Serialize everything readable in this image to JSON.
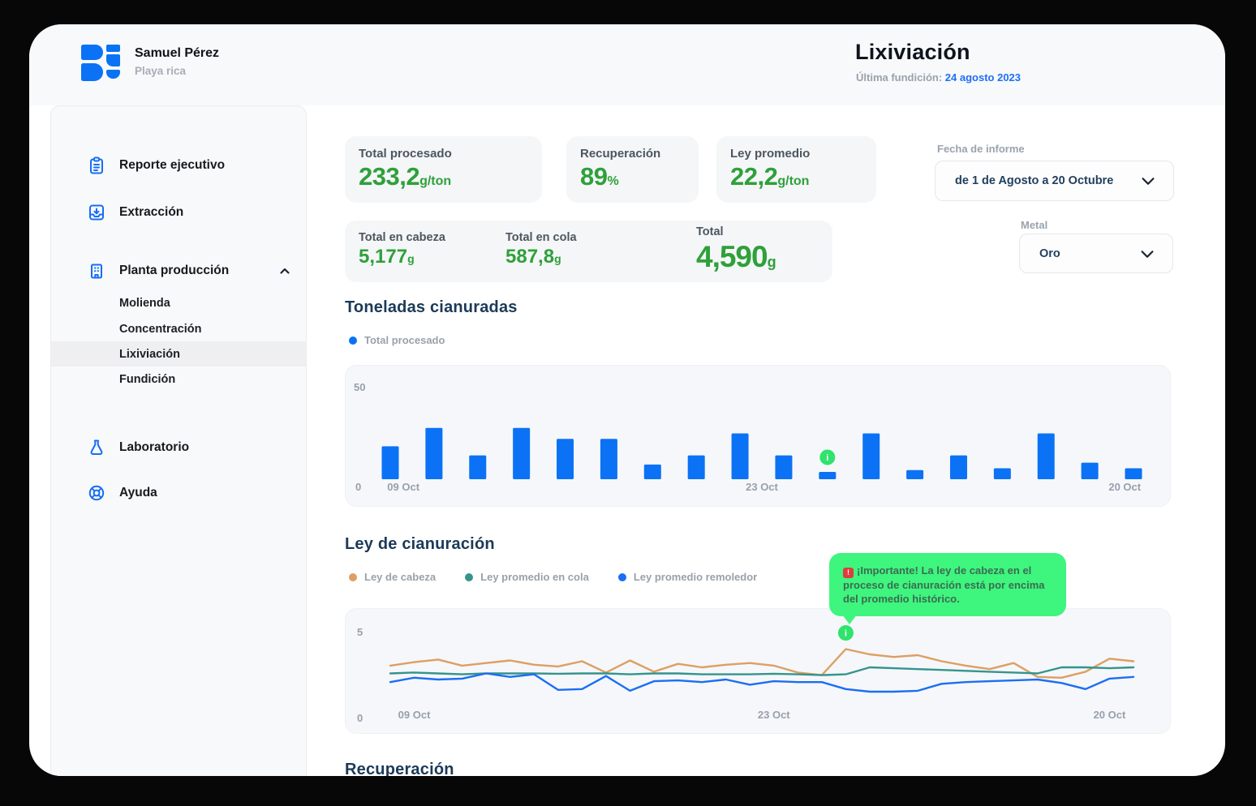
{
  "header": {
    "user_name": "Samuel Pérez",
    "user_subtitle": "Playa rica",
    "page_title": "Lixiviación",
    "last_smelting_label": "Última fundición:",
    "last_smelting_date": "24 agosto 2023"
  },
  "sidebar": {
    "items": [
      {
        "label": "Reporte ejecutivo",
        "icon": "clipboard-icon"
      },
      {
        "label": "Extracción",
        "icon": "download-tray-icon"
      },
      {
        "label": "Planta producción",
        "icon": "factory-icon",
        "expanded": true
      },
      {
        "label": "Laboratorio",
        "icon": "flask-icon"
      },
      {
        "label": "Ayuda",
        "icon": "lifebuoy-icon"
      }
    ],
    "planta_children": [
      {
        "label": "Molienda",
        "active": false
      },
      {
        "label": "Concentración",
        "active": false
      },
      {
        "label": "Lixiviación",
        "active": true
      },
      {
        "label": "Fundición",
        "active": false
      }
    ]
  },
  "filters": {
    "report_date_label": "Fecha de informe",
    "report_date_value": "de 1 de Agosto a  20 Octubre",
    "metal_label": "Metal",
    "metal_value": "Oro"
  },
  "kpis": [
    {
      "label": "Total procesado",
      "value": "233,2",
      "unit": "g/ton"
    },
    {
      "label": "Recuperación",
      "value": "89",
      "unit": "%"
    },
    {
      "label": "Ley promedio",
      "value": "22,2",
      "unit": "g/ton"
    }
  ],
  "totals": [
    {
      "label": "Total en cabeza",
      "value": "5,177",
      "unit": "g"
    },
    {
      "label": "Total en cola",
      "value": "587,8",
      "unit": "g"
    },
    {
      "label": "Total",
      "value": "4,590",
      "unit": "g"
    }
  ],
  "tooltip": {
    "icon_char": "!",
    "text": "¡Importante! La ley de cabeza en el proceso de cianuración está por encima del promedio histórico."
  },
  "sections": {
    "recuperacion_title": "Recuperación"
  },
  "colors": {
    "accent_blue": "#0b72f5",
    "link_blue": "#1f6ef6",
    "value_green": "#2fa03a",
    "info_green": "#2fe36c",
    "tooltip_green": "#3ef57e",
    "line_orange": "#dd9f62",
    "line_teal": "#35948c",
    "line_blue": "#1b6ef3"
  },
  "chart_data": [
    {
      "type": "bar",
      "title": "Toneladas cianuradas",
      "legend": [
        {
          "label": "Total procesado",
          "color": "#0b72f5"
        }
      ],
      "ylim": [
        0,
        50
      ],
      "bar_color": "#0b72f5",
      "values": [
        18,
        28,
        13,
        28,
        22,
        22,
        8,
        13,
        25,
        13,
        4,
        25,
        5,
        13,
        6,
        25,
        9,
        6
      ],
      "x_tick_labels": [
        {
          "label": "09 Oct",
          "index": 0.3
        },
        {
          "label": "23 Oct",
          "index": 8.5
        },
        {
          "label": "20 Oct",
          "index": 16.8
        }
      ],
      "annotation": {
        "type": "info-marker",
        "bar_index": 10
      }
    },
    {
      "type": "line",
      "title": "Ley de cianuración",
      "ylim": [
        0,
        5
      ],
      "x_tick_labels": [
        {
          "label": "09 Oct",
          "index": 1
        },
        {
          "label": "23 Oct",
          "index": 16
        },
        {
          "label": "20 Oct",
          "index": 30
        }
      ],
      "series": [
        {
          "name": "Ley de cabeza",
          "color": "#dd9f62",
          "values": [
            2.95,
            3.15,
            3.3,
            2.95,
            3.1,
            3.25,
            3.0,
            2.9,
            3.2,
            2.55,
            3.25,
            2.6,
            3.05,
            2.85,
            3.0,
            3.1,
            2.95,
            2.55,
            2.4,
            3.9,
            3.6,
            3.45,
            3.55,
            3.2,
            2.95,
            2.75,
            3.1,
            2.3,
            2.25,
            2.6,
            3.35,
            3.2
          ]
        },
        {
          "name": "Ley promedio en cola",
          "color": "#35948c",
          "values": [
            2.5,
            2.55,
            2.5,
            2.45,
            2.5,
            2.5,
            2.5,
            2.48,
            2.5,
            2.5,
            2.45,
            2.5,
            2.5,
            2.45,
            2.45,
            2.45,
            2.48,
            2.45,
            2.4,
            2.45,
            2.85,
            2.8,
            2.75,
            2.7,
            2.65,
            2.6,
            2.55,
            2.5,
            2.85,
            2.85,
            2.8,
            2.85
          ]
        },
        {
          "name": "Ley promedio remoledor",
          "color": "#1b6ef3",
          "values": [
            2.0,
            2.25,
            2.15,
            2.2,
            2.5,
            2.3,
            2.45,
            1.55,
            1.6,
            2.35,
            1.5,
            2.05,
            2.1,
            2.0,
            2.15,
            1.85,
            2.05,
            2.0,
            2.0,
            1.6,
            1.45,
            1.45,
            1.5,
            1.9,
            2.0,
            2.05,
            2.1,
            2.15,
            1.95,
            1.6,
            2.2,
            2.3
          ]
        }
      ],
      "annotation": {
        "type": "info-marker",
        "series_index": 0,
        "point_index": 19
      }
    }
  ]
}
